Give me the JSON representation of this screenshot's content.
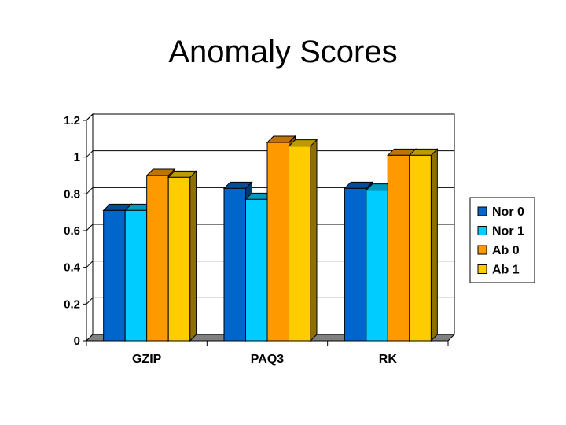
{
  "chart_data": {
    "type": "bar",
    "title": "Anomaly Scores",
    "categories": [
      "GZIP",
      "PAQ3",
      "RK"
    ],
    "series": [
      {
        "name": "Nor 0",
        "color": "#0066CC",
        "values": [
          0.71,
          0.83,
          0.83
        ]
      },
      {
        "name": "Nor 1",
        "color": "#00CCFF",
        "values": [
          0.71,
          0.77,
          0.82
        ]
      },
      {
        "name": "Ab 0",
        "color": "#FF9900",
        "values": [
          0.9,
          1.08,
          1.01
        ]
      },
      {
        "name": "Ab 1",
        "color": "#FFCC00",
        "values": [
          0.89,
          1.06,
          1.01
        ]
      }
    ],
    "yticks": [
      "0",
      "0.2",
      "0.4",
      "0.6",
      "0.8",
      "1",
      "1.2"
    ],
    "ylim": [
      0,
      1.2
    ],
    "grid": true,
    "legend_position": "right",
    "xlabel": "",
    "ylabel": ""
  }
}
